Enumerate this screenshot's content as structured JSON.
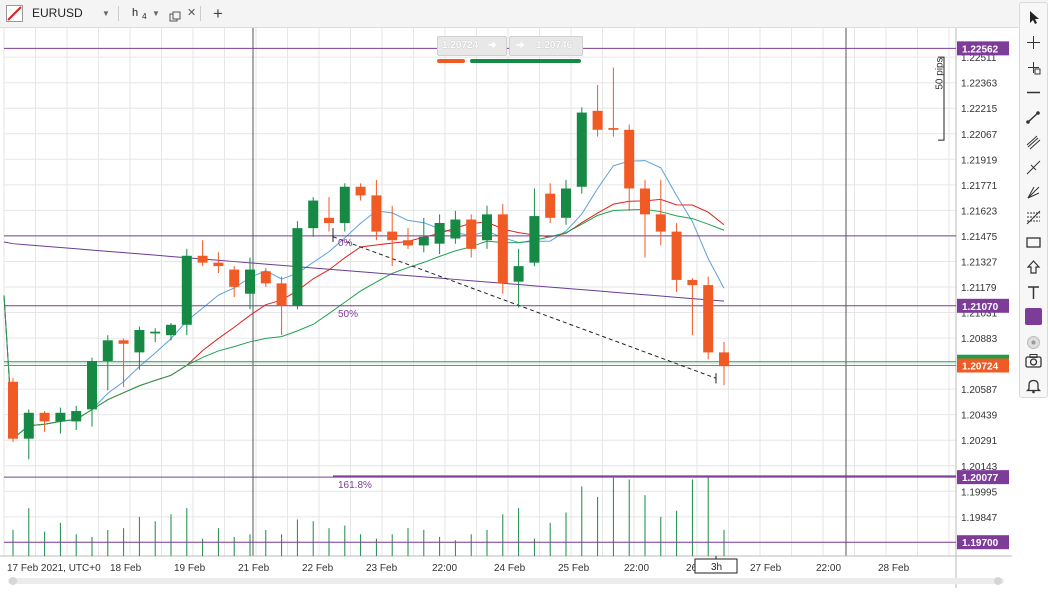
{
  "header": {
    "symbol": "EURUSD",
    "timeframe_main": "h",
    "timeframe_sub": "4",
    "add_symbol": "+"
  },
  "trade_panel": {
    "sell_price": "1.20724",
    "buy_price": "1.20746",
    "sell_arrow": "➜",
    "buy_arrow": "➜"
  },
  "measure": {
    "label": "50 pips"
  },
  "fib": {
    "level_0": "0%",
    "level_50": "50%",
    "level_161": "161.8%"
  },
  "price_axis": {
    "ticks": [
      "1.22511",
      "1.22363",
      "1.22215",
      "1.22067",
      "1.21919",
      "1.21771",
      "1.21623",
      "1.21475",
      "1.21327",
      "1.21179",
      "1.21031",
      "1.20883",
      "1.20735",
      "1.20587",
      "1.20439",
      "1.20291",
      "1.20143",
      "1.19995",
      "1.19847",
      "1.19700"
    ],
    "hline_labels": [
      {
        "text": "1.22562",
        "color": "#7d3c98"
      },
      {
        "text": "1.21070",
        "color": "#7d3c98"
      },
      {
        "text": "1.20077",
        "color": "#7d3c98"
      },
      {
        "text": "1.19700",
        "color": "#7d3c98"
      }
    ],
    "current_price": "1.20724",
    "current_color": "#f05a24",
    "green_tag_color": "#1e9e4a"
  },
  "time_axis": {
    "labels": [
      "17 Feb 2021, UTC+0",
      "18 Feb",
      "19 Feb",
      "21 Feb",
      "22 Feb",
      "23 Feb",
      "22:00",
      "24 Feb",
      "25 Feb",
      "22:00",
      "26 Feb",
      "27 Feb",
      "22:00",
      "28 Feb"
    ],
    "cursor_label": "3h"
  },
  "colors": {
    "bull": "#168a45",
    "bear": "#f05a24",
    "fib": "#7d3c98",
    "ma_red": "#e02020",
    "ma_blue": "#5aa0d8",
    "ma_green": "#20a050",
    "ma_purple": "#6a3c98"
  },
  "chart_data": {
    "type": "candlestick",
    "symbol": "EURUSD",
    "timeframe": "4h",
    "candles": [
      {
        "o": 1.2063,
        "h": 1.2065,
        "l": 1.2028,
        "c": 1.203
      },
      {
        "o": 1.203,
        "h": 1.2047,
        "l": 1.2018,
        "c": 1.2045
      },
      {
        "o": 1.2045,
        "h": 1.2046,
        "l": 1.2034,
        "c": 1.204
      },
      {
        "o": 1.204,
        "h": 1.2048,
        "l": 1.2033,
        "c": 1.2045
      },
      {
        "o": 1.204,
        "h": 1.2049,
        "l": 1.2035,
        "c": 1.2046
      },
      {
        "o": 1.2047,
        "h": 1.2077,
        "l": 1.2037,
        "c": 1.2075
      },
      {
        "o": 1.2075,
        "h": 1.209,
        "l": 1.2058,
        "c": 1.2087
      },
      {
        "o": 1.2087,
        "h": 1.2088,
        "l": 1.206,
        "c": 1.2085
      },
      {
        "o": 1.208,
        "h": 1.2095,
        "l": 1.207,
        "c": 1.2093
      },
      {
        "o": 1.2091,
        "h": 1.2094,
        "l": 1.2086,
        "c": 1.2092
      },
      {
        "o": 1.209,
        "h": 1.2097,
        "l": 1.2087,
        "c": 1.2096
      },
      {
        "o": 1.2096,
        "h": 1.214,
        "l": 1.209,
        "c": 1.2136
      },
      {
        "o": 1.2136,
        "h": 1.2145,
        "l": 1.213,
        "c": 1.2132
      },
      {
        "o": 1.2132,
        "h": 1.2138,
        "l": 1.2126,
        "c": 1.213
      },
      {
        "o": 1.2128,
        "h": 1.213,
        "l": 1.2112,
        "c": 1.2118
      },
      {
        "o": 1.2114,
        "h": 1.2135,
        "l": 1.2105,
        "c": 1.2128
      },
      {
        "o": 1.2127,
        "h": 1.2129,
        "l": 1.2118,
        "c": 1.212
      },
      {
        "o": 1.212,
        "h": 1.2124,
        "l": 1.209,
        "c": 1.2107
      },
      {
        "o": 1.2107,
        "h": 1.2156,
        "l": 1.2105,
        "c": 1.2152
      },
      {
        "o": 1.2152,
        "h": 1.217,
        "l": 1.2147,
        "c": 1.2168
      },
      {
        "o": 1.2158,
        "h": 1.217,
        "l": 1.215,
        "c": 1.2155
      },
      {
        "o": 1.2155,
        "h": 1.2178,
        "l": 1.215,
        "c": 1.2176
      },
      {
        "o": 1.2176,
        "h": 1.2178,
        "l": 1.2168,
        "c": 1.2171
      },
      {
        "o": 1.2171,
        "h": 1.218,
        "l": 1.2145,
        "c": 1.215
      },
      {
        "o": 1.215,
        "h": 1.2165,
        "l": 1.213,
        "c": 1.2145
      },
      {
        "o": 1.2145,
        "h": 1.2152,
        "l": 1.214,
        "c": 1.2142
      },
      {
        "o": 1.2142,
        "h": 1.2158,
        "l": 1.2138,
        "c": 1.2147
      },
      {
        "o": 1.2143,
        "h": 1.216,
        "l": 1.2137,
        "c": 1.2155
      },
      {
        "o": 1.2146,
        "h": 1.2162,
        "l": 1.2143,
        "c": 1.2157
      },
      {
        "o": 1.2157,
        "h": 1.216,
        "l": 1.2135,
        "c": 1.214
      },
      {
        "o": 1.2145,
        "h": 1.2165,
        "l": 1.214,
        "c": 1.216
      },
      {
        "o": 1.216,
        "h": 1.2166,
        "l": 1.2114,
        "c": 1.212
      },
      {
        "o": 1.2121,
        "h": 1.214,
        "l": 1.2106,
        "c": 1.213
      },
      {
        "o": 1.2132,
        "h": 1.2175,
        "l": 1.213,
        "c": 1.2159
      },
      {
        "o": 1.2172,
        "h": 1.2178,
        "l": 1.2155,
        "c": 1.2158
      },
      {
        "o": 1.2158,
        "h": 1.218,
        "l": 1.2154,
        "c": 1.2175
      },
      {
        "o": 1.2176,
        "h": 1.2222,
        "l": 1.2172,
        "c": 1.2219
      },
      {
        "o": 1.222,
        "h": 1.2235,
        "l": 1.2205,
        "c": 1.2209
      },
      {
        "o": 1.221,
        "h": 1.2245,
        "l": 1.2205,
        "c": 1.2209
      },
      {
        "o": 1.2209,
        "h": 1.2212,
        "l": 1.2162,
        "c": 1.2175
      },
      {
        "o": 1.2175,
        "h": 1.218,
        "l": 1.2135,
        "c": 1.216
      },
      {
        "o": 1.216,
        "h": 1.218,
        "l": 1.2142,
        "c": 1.215
      },
      {
        "o": 1.215,
        "h": 1.2155,
        "l": 1.2115,
        "c": 1.2122
      },
      {
        "o": 1.2122,
        "h": 1.2123,
        "l": 1.209,
        "c": 1.2119
      },
      {
        "o": 1.2119,
        "h": 1.2124,
        "l": 1.2076,
        "c": 1.208
      },
      {
        "o": 1.208,
        "h": 1.2086,
        "l": 1.2061,
        "c": 1.2072
      }
    ],
    "volumes": [
      30,
      55,
      28,
      38,
      25,
      22,
      30,
      32,
      45,
      40,
      48,
      55,
      20,
      32,
      22,
      25,
      30,
      25,
      42,
      40,
      32,
      35,
      25,
      20,
      25,
      32,
      30,
      22,
      18,
      25,
      30,
      48,
      55,
      20,
      38,
      50,
      80,
      68,
      90,
      88,
      70,
      45,
      52,
      88,
      92,
      30
    ],
    "fib_levels": [
      {
        "label": "0%",
        "price": 1.21475
      },
      {
        "label": "50%",
        "price": 1.2107
      },
      {
        "label": "161.8%",
        "price": 1.20077
      }
    ],
    "horizontal_lines": [
      1.22562,
      1.2107,
      1.20077,
      1.197,
      1.21475
    ],
    "y_range": [
      1.1962,
      1.2268
    ]
  }
}
